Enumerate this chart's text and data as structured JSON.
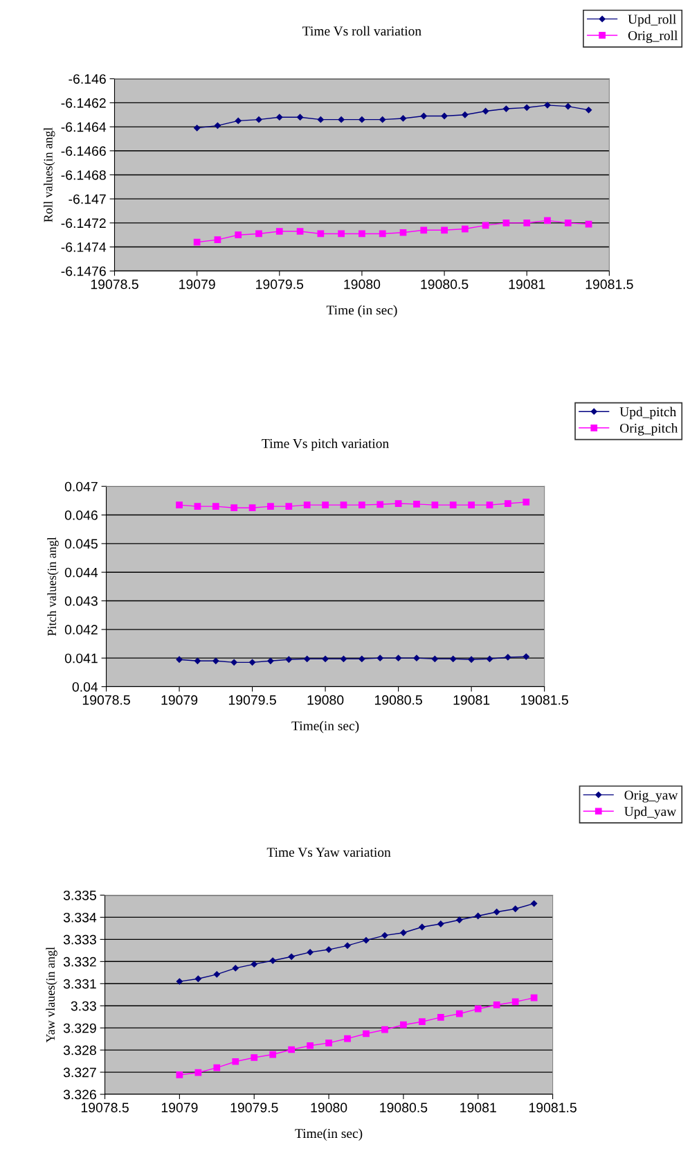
{
  "chart_data": [
    {
      "type": "line",
      "title": "Time Vs roll variation",
      "xlabel": "Time (in sec)",
      "ylabel": "Roll values(in angl",
      "legend": "top right",
      "grid": "y",
      "x": [
        19079,
        19079.125,
        19079.25,
        19079.375,
        19079.5,
        19079.625,
        19079.75,
        19079.875,
        19080,
        19080.125,
        19080.25,
        19080.375,
        19080.5,
        19080.625,
        19080.75,
        19080.875,
        19081,
        19081.125,
        19081.25,
        19081.375
      ],
      "series": [
        {
          "name": "Upd_roll",
          "color": "#000080",
          "marker": "diamond",
          "values": [
            -6.14641,
            -6.14639,
            -6.14635,
            -6.14634,
            -6.14632,
            -6.14632,
            -6.14634,
            -6.14634,
            -6.14634,
            -6.14634,
            -6.14633,
            -6.14631,
            -6.14631,
            -6.1463,
            -6.14627,
            -6.14625,
            -6.14624,
            -6.14622,
            -6.14623,
            -6.14626
          ]
        },
        {
          "name": "Orig_roll",
          "color": "#ff00ff",
          "marker": "square",
          "values": [
            -6.14736,
            -6.14734,
            -6.1473,
            -6.14729,
            -6.14727,
            -6.14727,
            -6.14729,
            -6.14729,
            -6.14729,
            -6.14729,
            -6.14728,
            -6.14726,
            -6.14726,
            -6.14725,
            -6.14722,
            -6.1472,
            -6.1472,
            -6.14718,
            -6.1472,
            -6.14721
          ]
        }
      ],
      "xlim": [
        19078.5,
        19081.5
      ],
      "xticks": [
        19078.5,
        19079,
        19079.5,
        19080,
        19080.5,
        19081,
        19081.5
      ],
      "ylim": [
        -6.1476,
        -6.146
      ],
      "yticks": [
        -6.1476,
        -6.1474,
        -6.1472,
        -6.147,
        -6.1468,
        -6.1466,
        -6.1464,
        -6.1462,
        -6.146
      ]
    },
    {
      "type": "line",
      "title": "Time Vs pitch variation",
      "xlabel": "Time(in sec)",
      "ylabel": "Pitch values(in angl",
      "legend": "top right",
      "grid": "y",
      "x": [
        19079,
        19079.125,
        19079.25,
        19079.375,
        19079.5,
        19079.625,
        19079.75,
        19079.875,
        19080,
        19080.125,
        19080.25,
        19080.375,
        19080.5,
        19080.625,
        19080.75,
        19080.875,
        19081,
        19081.125,
        19081.25,
        19081.375
      ],
      "series": [
        {
          "name": "Upd_pitch",
          "color": "#000080",
          "marker": "diamond",
          "values": [
            0.04095,
            0.0409,
            0.0409,
            0.04085,
            0.04085,
            0.0409,
            0.04095,
            0.04097,
            0.04097,
            0.04097,
            0.04097,
            0.041,
            0.041,
            0.041,
            0.04097,
            0.04097,
            0.04095,
            0.04097,
            0.04103,
            0.04105
          ]
        },
        {
          "name": "Orig_pitch",
          "color": "#ff00ff",
          "marker": "square",
          "values": [
            0.04635,
            0.0463,
            0.0463,
            0.04625,
            0.04625,
            0.0463,
            0.0463,
            0.04635,
            0.04635,
            0.04635,
            0.04635,
            0.04637,
            0.0464,
            0.04638,
            0.04635,
            0.04635,
            0.04635,
            0.04635,
            0.0464,
            0.04645
          ]
        }
      ],
      "xlim": [
        19078.5,
        19081.5
      ],
      "xticks": [
        19078.5,
        19079,
        19079.5,
        19080,
        19080.5,
        19081,
        19081.5
      ],
      "ylim": [
        0.04,
        0.047
      ],
      "yticks": [
        0.04,
        0.041,
        0.042,
        0.043,
        0.044,
        0.045,
        0.046,
        0.047
      ]
    },
    {
      "type": "line",
      "title": "Time Vs Yaw variation",
      "xlabel": "Time(in sec)",
      "ylabel": "Yaw vlaues(in angl",
      "legend": "top right",
      "grid": "y",
      "x": [
        19079,
        19079.125,
        19079.25,
        19079.375,
        19079.5,
        19079.625,
        19079.75,
        19079.875,
        19080,
        19080.125,
        19080.25,
        19080.375,
        19080.5,
        19080.625,
        19080.75,
        19080.875,
        19081,
        19081.125,
        19081.25,
        19081.375
      ],
      "series": [
        {
          "name": "Orig_yaw",
          "color": "#000080",
          "marker": "diamond",
          "values": [
            3.3311,
            3.33122,
            3.33142,
            3.3317,
            3.33188,
            3.33204,
            3.33222,
            3.33242,
            3.33254,
            3.33272,
            3.33296,
            3.33318,
            3.3333,
            3.33356,
            3.3337,
            3.33388,
            3.33406,
            3.33424,
            3.33438,
            3.33462
          ]
        },
        {
          "name": "Upd_yaw",
          "color": "#ff00ff",
          "marker": "square",
          "values": [
            3.32688,
            3.32698,
            3.3272,
            3.32748,
            3.32766,
            3.3278,
            3.32802,
            3.3282,
            3.32832,
            3.32852,
            3.32874,
            3.32892,
            3.32914,
            3.32928,
            3.32948,
            3.32964,
            3.32986,
            3.33004,
            3.33018,
            3.33036
          ]
        }
      ],
      "xlim": [
        19078.5,
        19081.5
      ],
      "xticks": [
        19078.5,
        19079,
        19079.5,
        19080,
        19080.5,
        19081,
        19081.5
      ],
      "ylim": [
        3.326,
        3.335
      ],
      "yticks": [
        3.326,
        3.327,
        3.328,
        3.329,
        3.33,
        3.331,
        3.332,
        3.333,
        3.334,
        3.335
      ]
    }
  ]
}
